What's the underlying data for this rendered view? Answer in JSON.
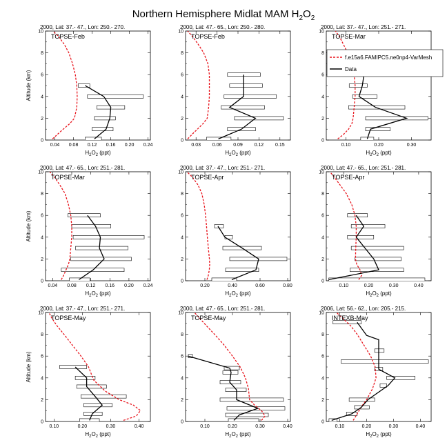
{
  "figure": {
    "title": "Northern Hemisphere Midlat MAM H",
    "title_sub": "2",
    "title_tail": "O",
    "title_sub2": "2"
  },
  "legend": {
    "model_label": "f.e15a6.FAMIPC5.ne0np4-VarMesh",
    "data_label": "Data",
    "model_color": "#e8141c",
    "data_color": "#000000"
  },
  "colors": {
    "model": "#e8141c",
    "data": "#000000",
    "box_fill": "#ffffff",
    "axis": "#000000"
  },
  "chart_data": [
    {
      "type": "line",
      "header": "2000, Lat: 37.- 47., Lon: 250.- 270.",
      "tag": "TOPSE-Feb",
      "xlabel": "H2O2 (ppt)",
      "ylabel": "Altitude (km)",
      "xlim": [
        0.02,
        0.245
      ],
      "ylim": [
        0,
        10
      ],
      "xticks": [
        0.04,
        0.08,
        0.12,
        0.16,
        0.2,
        0.24
      ],
      "xticklabels": [
        "0.04",
        "0.08",
        "0.12",
        "0.16",
        "0.20",
        "0.24"
      ],
      "yticks": [
        0,
        2,
        4,
        6,
        8,
        10
      ],
      "model": {
        "x": [
          0.035,
          0.045,
          0.058,
          0.072,
          0.082,
          0.087,
          0.088,
          0.087,
          0.084,
          0.078,
          0.07,
          0.06,
          0.048,
          0.036
        ],
        "y": [
          0.1,
          0.5,
          1.0,
          1.5,
          2.0,
          3.0,
          4.0,
          5.0,
          6.0,
          7.0,
          8.0,
          8.8,
          9.5,
          10.0
        ]
      },
      "data": {
        "x": [
          0.125,
          0.15,
          0.158,
          0.16,
          0.145,
          0.105
        ],
        "y": [
          0.1,
          1.0,
          2.0,
          3.0,
          4.0,
          5.0
        ]
      },
      "boxes": [
        {
          "y": 0.1,
          "x1": 0.105,
          "x2": 0.14
        },
        {
          "y": 1.0,
          "x1": 0.12,
          "x2": 0.165
        },
        {
          "y": 2.0,
          "x1": 0.125,
          "x2": 0.17
        },
        {
          "y": 3.0,
          "x1": 0.13,
          "x2": 0.19
        },
        {
          "y": 4.0,
          "x1": 0.11,
          "x2": 0.23
        },
        {
          "y": 5.0,
          "x1": 0.09,
          "x2": 0.115
        }
      ]
    },
    {
      "type": "line",
      "header": "2000, Lat: 47.- 65., Lon: 250.- 280.",
      "tag": "TOPSE-Feb",
      "xlabel": "H2O2 (ppt)",
      "ylabel": "",
      "xlim": [
        0.015,
        0.165
      ],
      "ylim": [
        0,
        10
      ],
      "xticks": [
        0.03,
        0.06,
        0.09,
        0.12,
        0.15
      ],
      "xticklabels": [
        "0.03",
        "0.06",
        "0.09",
        "0.12",
        "0.15"
      ],
      "yticks": [
        0,
        2,
        4,
        6,
        8,
        10
      ],
      "model": {
        "x": [
          0.018,
          0.024,
          0.032,
          0.04,
          0.046,
          0.048,
          0.049,
          0.049,
          0.049,
          0.047,
          0.041,
          0.033,
          0.025,
          0.018
        ],
        "y": [
          0.1,
          0.5,
          1.0,
          1.5,
          2.0,
          3.0,
          4.0,
          5.0,
          6.0,
          7.0,
          8.0,
          8.8,
          9.5,
          10.0
        ]
      },
      "data": {
        "x": [
          0.062,
          0.095,
          0.115,
          0.078,
          0.098,
          0.098,
          0.098
        ],
        "y": [
          0.1,
          1.0,
          2.0,
          3.0,
          4.0,
          5.0,
          6.0
        ]
      },
      "boxes": [
        {
          "y": 0.1,
          "x1": 0.045,
          "x2": 0.08
        },
        {
          "y": 1.0,
          "x1": 0.075,
          "x2": 0.115
        },
        {
          "y": 2.0,
          "x1": 0.085,
          "x2": 0.155
        },
        {
          "y": 3.0,
          "x1": 0.066,
          "x2": 0.128
        },
        {
          "y": 4.0,
          "x1": 0.07,
          "x2": 0.145
        },
        {
          "y": 5.0,
          "x1": 0.078,
          "x2": 0.125
        },
        {
          "y": 6.0,
          "x1": 0.075,
          "x2": 0.122
        }
      ]
    },
    {
      "type": "line",
      "header": "2000, Lat: 37.- 47., Lon: 251.- 271.",
      "tag": "TOPSE-Mar",
      "xlabel": "H2O2 (ppt)",
      "ylabel": "",
      "xlim": [
        0.04,
        0.36
      ],
      "ylim": [
        0,
        10
      ],
      "xticks": [
        0.1,
        0.2,
        0.3
      ],
      "xticklabels": [
        "0.10",
        "0.20",
        "0.30"
      ],
      "yticks": [
        0,
        2,
        4,
        6,
        8,
        10
      ],
      "model": {
        "x": [
          0.075,
          0.092,
          0.108,
          0.118,
          0.122,
          0.125,
          0.128,
          0.128,
          0.125,
          0.118,
          0.105,
          0.092,
          0.08,
          0.068
        ],
        "y": [
          0.1,
          0.5,
          1.0,
          1.5,
          2.0,
          3.0,
          4.0,
          5.0,
          6.0,
          7.0,
          8.0,
          8.8,
          9.5,
          10.0
        ]
      },
      "data": {
        "x": [
          0.165,
          0.175,
          0.285,
          0.19,
          0.14,
          0.15,
          0.155
        ],
        "y": [
          0.1,
          1.0,
          2.0,
          3.0,
          4.0,
          5.0,
          6.0
        ]
      },
      "boxes": [
        {
          "y": 0.1,
          "x1": 0.145,
          "x2": 0.185
        },
        {
          "y": 1.0,
          "x1": 0.16,
          "x2": 0.235
        },
        {
          "y": 2.0,
          "x1": 0.16,
          "x2": 0.35
        },
        {
          "y": 3.0,
          "x1": 0.108,
          "x2": 0.28
        },
        {
          "y": 4.0,
          "x1": 0.12,
          "x2": 0.195
        },
        {
          "y": 5.0,
          "x1": 0.11,
          "x2": 0.165
        },
        {
          "y": 6.0,
          "x1": 0.11,
          "x2": 0.175
        }
      ]
    },
    {
      "type": "line",
      "header": "2000, Lat: 47.- 65., Lon: 251.- 281.",
      "tag": "TOPSE-Mar",
      "xlabel": "H2O2 (ppt)",
      "ylabel": "Altitude (km)",
      "xlim": [
        0.025,
        0.245
      ],
      "ylim": [
        0,
        10
      ],
      "xticks": [
        0.04,
        0.08,
        0.12,
        0.16,
        0.2,
        0.24
      ],
      "xticklabels": [
        "0.04",
        "0.08",
        "0.12",
        "0.16",
        "0.20",
        "0.24"
      ],
      "yticks": [
        0,
        2,
        4,
        6,
        8,
        10
      ],
      "model": {
        "x": [
          0.058,
          0.063,
          0.068,
          0.073,
          0.076,
          0.078,
          0.08,
          0.08,
          0.078,
          0.073,
          0.066,
          0.055,
          0.044,
          0.034
        ],
        "y": [
          0.1,
          0.5,
          1.0,
          1.5,
          2.0,
          3.0,
          4.0,
          5.0,
          6.0,
          7.0,
          8.0,
          8.8,
          9.5,
          10.0
        ]
      },
      "data": {
        "x": [
          0.095,
          0.125,
          0.148,
          0.138,
          0.14,
          0.13,
          0.113
        ],
        "y": [
          0.1,
          1.0,
          2.0,
          3.0,
          4.0,
          5.0,
          6.0
        ]
      },
      "boxes": [
        {
          "y": 0.1,
          "x1": 0.075,
          "x2": 0.118
        },
        {
          "y": 1.0,
          "x1": 0.058,
          "x2": 0.19
        },
        {
          "y": 2.0,
          "x1": 0.078,
          "x2": 0.205
        },
        {
          "y": 3.0,
          "x1": 0.088,
          "x2": 0.198
        },
        {
          "y": 4.0,
          "x1": 0.083,
          "x2": 0.232
        },
        {
          "y": 5.0,
          "x1": 0.08,
          "x2": 0.162
        },
        {
          "y": 6.0,
          "x1": 0.072,
          "x2": 0.14
        }
      ]
    },
    {
      "type": "line",
      "header": "2000, Lat: 37.- 47., Lon: 251.- 271.",
      "tag": "TOPSE-Apr",
      "xlabel": "H2O2 (ppt)",
      "ylabel": "",
      "xlim": [
        0.06,
        0.82
      ],
      "ylim": [
        0,
        10
      ],
      "xticks": [
        0.2,
        0.4,
        0.6,
        0.8
      ],
      "xticklabels": [
        "0.20",
        "0.40",
        "0.60",
        "0.80"
      ],
      "yticks": [
        0,
        2,
        4,
        6,
        8,
        10
      ],
      "model": {
        "x": [
          0.215,
          0.225,
          0.232,
          0.235,
          0.233,
          0.225,
          0.218,
          0.212,
          0.205,
          0.195,
          0.178,
          0.15,
          0.11,
          0.07
        ],
        "y": [
          0.1,
          0.5,
          1.0,
          1.5,
          2.0,
          3.0,
          4.0,
          5.0,
          6.0,
          7.0,
          8.0,
          8.8,
          9.5,
          10.0
        ]
      },
      "data": {
        "x": [
          0.395,
          0.57,
          0.59,
          0.47,
          0.345,
          0.295
        ],
        "y": [
          0.1,
          1.0,
          2.0,
          3.0,
          4.0,
          5.0
        ]
      },
      "boxes": [
        {
          "y": 0.1,
          "x1": 0.25,
          "x2": 0.43
        },
        {
          "y": 1.0,
          "x1": 0.35,
          "x2": 0.59
        },
        {
          "y": 2.0,
          "x1": 0.38,
          "x2": 0.795
        },
        {
          "y": 3.0,
          "x1": 0.33,
          "x2": 0.61
        },
        {
          "y": 4.0,
          "x1": 0.345,
          "x2": 0.4
        },
        {
          "y": 5.0,
          "x1": 0.27,
          "x2": 0.335
        }
      ]
    },
    {
      "type": "line",
      "header": "2000, Lat: 47.- 65., Lon: 251.- 281.",
      "tag": "TOPSE-Apr",
      "xlabel": "H2O2 (ppt)",
      "ylabel": "",
      "xlim": [
        0.03,
        0.45
      ],
      "ylim": [
        0,
        10
      ],
      "xticks": [
        0.1,
        0.2,
        0.3,
        0.4
      ],
      "xticklabels": [
        "0.10",
        "0.20",
        "0.30",
        "0.40"
      ],
      "yticks": [
        0,
        2,
        4,
        6,
        8,
        10
      ],
      "model": {
        "x": [
          0.16,
          0.172,
          0.165,
          0.152,
          0.147,
          0.148,
          0.15,
          0.15,
          0.145,
          0.132,
          0.11,
          0.085,
          0.062,
          0.045
        ],
        "y": [
          0.1,
          0.5,
          1.0,
          1.5,
          2.0,
          3.0,
          4.0,
          5.0,
          6.0,
          7.0,
          8.0,
          8.8,
          9.5,
          10.0
        ]
      },
      "data": {
        "x": [
          0.04,
          0.24,
          0.22,
          0.185,
          0.15,
          0.18,
          0.15
        ],
        "y": [
          0.1,
          1.0,
          2.0,
          3.0,
          4.0,
          5.0,
          6.0
        ]
      },
      "boxes": [
        {
          "y": 0.1,
          "x1": 0.04,
          "x2": 0.425
        },
        {
          "y": 1.0,
          "x1": 0.125,
          "x2": 0.34
        },
        {
          "y": 2.0,
          "x1": 0.145,
          "x2": 0.33
        },
        {
          "y": 3.0,
          "x1": 0.13,
          "x2": 0.34
        },
        {
          "y": 4.0,
          "x1": 0.115,
          "x2": 0.22
        },
        {
          "y": 5.0,
          "x1": 0.13,
          "x2": 0.265
        },
        {
          "y": 6.0,
          "x1": 0.115,
          "x2": 0.195
        }
      ]
    },
    {
      "type": "line",
      "header": "2000, Lat: 37.- 47., Lon: 251.- 271.",
      "tag": "TOPSE-May",
      "xlabel": "H2O2 (ppt)",
      "ylabel": "Altitude (km)",
      "xlim": [
        0.07,
        0.44
      ],
      "ylim": [
        0,
        10
      ],
      "xticks": [
        0.1,
        0.2,
        0.3,
        0.4
      ],
      "xticklabels": [
        "0.10",
        "0.20",
        "0.30",
        "0.40"
      ],
      "yticks": [
        0,
        2,
        4,
        6,
        8,
        10
      ],
      "model": {
        "x": [
          0.345,
          0.39,
          0.405,
          0.38,
          0.33,
          0.28,
          0.24,
          0.222,
          0.195,
          0.165,
          0.135,
          0.11,
          0.092,
          0.082
        ],
        "y": [
          0.1,
          0.5,
          1.0,
          1.5,
          2.0,
          2.8,
          3.8,
          5.0,
          6.0,
          7.0,
          8.0,
          8.8,
          9.5,
          10.0
        ]
      },
      "data": {
        "x": [
          0.225,
          0.235,
          0.27,
          0.245,
          0.215,
          0.215,
          0.175
        ],
        "y": [
          0.1,
          0.7,
          1.5,
          2.3,
          3.2,
          4.0,
          5.0
        ]
      },
      "boxes": [
        {
          "y": 0.1,
          "x1": 0.19,
          "x2": 0.26
        },
        {
          "y": 0.7,
          "x1": 0.205,
          "x2": 0.27
        },
        {
          "y": 1.5,
          "x1": 0.205,
          "x2": 0.305
        },
        {
          "y": 2.3,
          "x1": 0.195,
          "x2": 0.355
        },
        {
          "y": 3.2,
          "x1": 0.18,
          "x2": 0.285
        },
        {
          "y": 4.0,
          "x1": 0.175,
          "x2": 0.245
        },
        {
          "y": 5.0,
          "x1": 0.12,
          "x2": 0.215
        }
      ]
    },
    {
      "type": "line",
      "header": "2000, Lat: 47.- 65., Lon: 251.- 281.",
      "tag": "TOPSE-May",
      "xlabel": "H2O2 (ppt)",
      "ylabel": "",
      "xlim": [
        0.03,
        0.41
      ],
      "ylim": [
        0,
        10
      ],
      "xticks": [
        0.1,
        0.2,
        0.3,
        0.4
      ],
      "xticklabels": [
        "0.10",
        "0.20",
        "0.30",
        "0.40"
      ],
      "yticks": [
        0,
        2,
        4,
        6,
        8,
        10
      ],
      "model": {
        "x": [
          0.305,
          0.318,
          0.305,
          0.28,
          0.262,
          0.258,
          0.247,
          0.228,
          0.2,
          0.17,
          0.135,
          0.105,
          0.08,
          0.062
        ],
        "y": [
          0.1,
          0.5,
          1.0,
          1.5,
          2.0,
          3.0,
          4.0,
          5.0,
          6.0,
          7.0,
          8.0,
          8.8,
          9.5,
          10.0
        ]
      },
      "data": {
        "x": [
          0.205,
          0.225,
          0.292,
          0.215,
          0.215,
          0.19,
          0.195,
          0.19,
          0.04
        ],
        "y": [
          0.1,
          0.6,
          1.2,
          2.0,
          2.9,
          3.6,
          4.5,
          4.9,
          6.0
        ]
      },
      "boxes": [
        {
          "y": 0.1,
          "x1": 0.185,
          "x2": 0.295
        },
        {
          "y": 0.6,
          "x1": 0.175,
          "x2": 0.33
        },
        {
          "y": 1.2,
          "x1": 0.18,
          "x2": 0.39
        },
        {
          "y": 2.0,
          "x1": 0.155,
          "x2": 0.385
        },
        {
          "y": 2.9,
          "x1": 0.175,
          "x2": 0.25
        },
        {
          "y": 3.6,
          "x1": 0.155,
          "x2": 0.23
        },
        {
          "y": 4.5,
          "x1": 0.165,
          "x2": 0.22
        },
        {
          "y": 4.9,
          "x1": 0.17,
          "x2": 0.225
        },
        {
          "y": 6.0,
          "x1": 0.04,
          "x2": 0.055
        }
      ]
    },
    {
      "type": "line",
      "header": "2006, Lat: 56.- 62., Lon: 205.- 215.",
      "tag": "INTEXB-May",
      "xlabel": "H2O2 (ppt)",
      "ylabel": "",
      "xlim": [
        0.05,
        0.44
      ],
      "ylim": [
        0,
        10
      ],
      "xticks": [
        0.1,
        0.2,
        0.3,
        0.4
      ],
      "xticklabels": [
        "0.10",
        "0.20",
        "0.30",
        "0.40"
      ],
      "yticks": [
        0,
        2,
        4,
        6,
        8,
        10
      ],
      "model": {
        "x": [
          0.15,
          0.16,
          0.172,
          0.185,
          0.2,
          0.222,
          0.235,
          0.232,
          0.215,
          0.19,
          0.165,
          0.14,
          0.11,
          0.088
        ],
        "y": [
          0.1,
          0.5,
          1.0,
          1.5,
          2.0,
          3.0,
          4.0,
          5.0,
          6.0,
          7.0,
          8.0,
          8.8,
          9.5,
          10.0
        ]
      },
      "data": {
        "x": [
          0.07,
          0.145,
          0.18,
          0.205,
          0.28,
          0.305,
          0.245,
          0.245,
          0.245,
          0.245,
          0.2,
          0.165
        ],
        "y": [
          0.1,
          0.7,
          1.3,
          2.0,
          3.3,
          4.0,
          4.8,
          5.5,
          6.5,
          7.5,
          7.9,
          9.1
        ]
      },
      "boxes": [
        {
          "y": 0.1,
          "x1": 0.06,
          "x2": 0.09
        },
        {
          "y": 0.7,
          "x1": 0.125,
          "x2": 0.165
        },
        {
          "y": 1.3,
          "x1": 0.155,
          "x2": 0.21
        },
        {
          "y": 2.0,
          "x1": 0.135,
          "x2": 0.23
        },
        {
          "y": 3.3,
          "x1": 0.25,
          "x2": 0.275
        },
        {
          "y": 4.0,
          "x1": 0.275,
          "x2": 0.38
        },
        {
          "y": 4.8,
          "x1": 0.23,
          "x2": 0.26
        },
        {
          "y": 5.5,
          "x1": 0.105,
          "x2": 0.43
        },
        {
          "y": 6.5,
          "x1": 0.23,
          "x2": 0.265
        },
        {
          "y": 9.1,
          "x1": 0.075,
          "x2": 0.18
        }
      ]
    }
  ]
}
